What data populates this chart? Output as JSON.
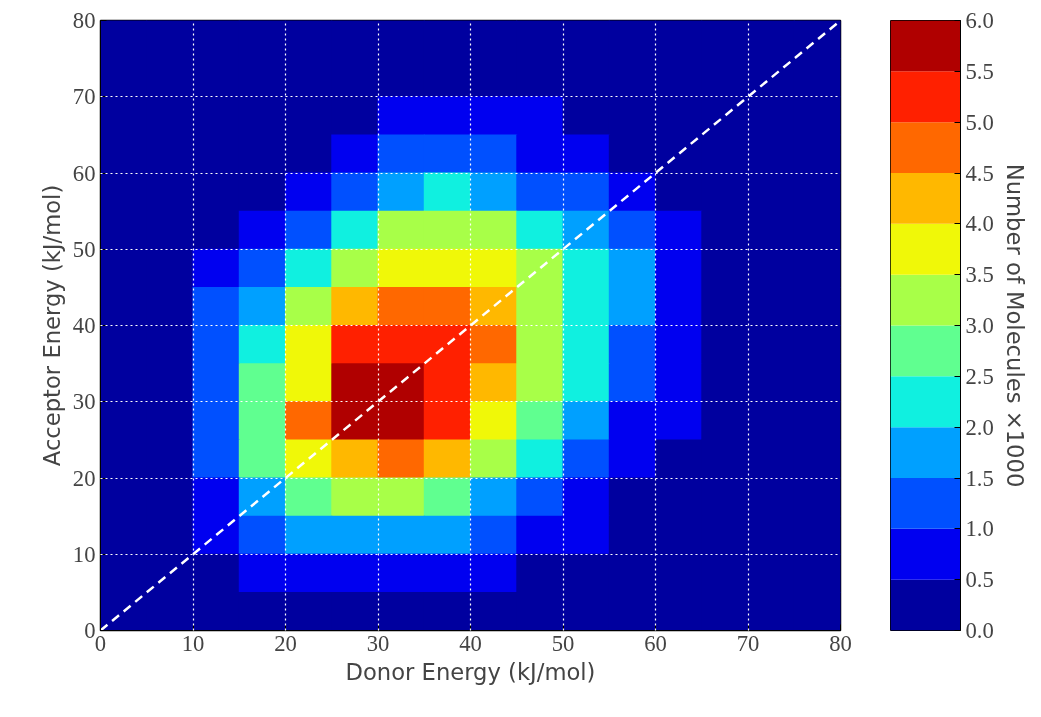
{
  "chart_data": {
    "type": "heatmap",
    "xlabel": "Donor Energy (kJ/mol)",
    "ylabel": "Acceptor Energy (kJ/mol)",
    "clabel": "Number of Molecules ×1000",
    "x": [
      2.5,
      7.5,
      12.5,
      17.5,
      22.5,
      27.5,
      32.5,
      37.5,
      42.5,
      47.5,
      52.5,
      57.5,
      62.5,
      67.5,
      72.5,
      77.5
    ],
    "y": [
      77.5,
      72.5,
      67.5,
      62.5,
      57.5,
      52.5,
      47.5,
      42.5,
      37.5,
      32.5,
      27.5,
      22.5,
      17.5,
      12.5,
      7.5,
      2.5
    ],
    "xlim": [
      0,
      80
    ],
    "ylim": [
      0,
      80
    ],
    "xticks": [
      0,
      10,
      20,
      30,
      40,
      50,
      60,
      70,
      80
    ],
    "yticks": [
      0,
      10,
      20,
      30,
      40,
      50,
      60,
      70,
      80
    ],
    "clim": [
      0,
      6
    ],
    "cticks": [
      {
        "value": 0,
        "label": "0.0"
      },
      {
        "value": 0.5,
        "label": "0.5"
      },
      {
        "value": 1,
        "label": "1.0"
      },
      {
        "value": 1.5,
        "label": "1.5"
      },
      {
        "value": 2,
        "label": "2.0"
      },
      {
        "value": 2.5,
        "label": "2.5"
      },
      {
        "value": 3,
        "label": "3.0"
      },
      {
        "value": 3.5,
        "label": "3.5"
      },
      {
        "value": 4,
        "label": "4.0"
      },
      {
        "value": 4.5,
        "label": "4.5"
      },
      {
        "value": 5,
        "label": "5.0"
      },
      {
        "value": 5.5,
        "label": "5.5"
      },
      {
        "value": 6,
        "label": "6.0"
      }
    ],
    "cells": [
      [
        0,
        0,
        0,
        0,
        0,
        0,
        0,
        0,
        0,
        0,
        0,
        0,
        0,
        0,
        0,
        0
      ],
      [
        0,
        0,
        0,
        0,
        0,
        0,
        0,
        0,
        0,
        0,
        0,
        0,
        0,
        0,
        0,
        0
      ],
      [
        0,
        0,
        0,
        0,
        0,
        0.2,
        0.6,
        0.6,
        0.6,
        0.6,
        0.2,
        0,
        0,
        0,
        0,
        0
      ],
      [
        0,
        0,
        0,
        0,
        0.3,
        0.7,
        1.1,
        1.2,
        1.1,
        0.8,
        0.6,
        0.2,
        0,
        0,
        0,
        0
      ],
      [
        0,
        0,
        0,
        0.4,
        0.8,
        1.3,
        1.8,
        2.0,
        1.8,
        1.4,
        1.1,
        0.6,
        0.2,
        0,
        0,
        0
      ],
      [
        0,
        0,
        0.3,
        0.8,
        1.4,
        2.2,
        3.0,
        3.2,
        3.0,
        2.4,
        1.7,
        1.0,
        0.6,
        0.1,
        0,
        0
      ],
      [
        0,
        0.1,
        0.7,
        1.4,
        2.2,
        3.1,
        3.8,
        3.9,
        3.7,
        3.0,
        2.1,
        1.5,
        0.8,
        0.2,
        0,
        0
      ],
      [
        0,
        0.3,
        1.0,
        1.8,
        3.1,
        4.1,
        4.5,
        4.6,
        4.4,
        3.2,
        2.2,
        1.5,
        0.9,
        0.2,
        0,
        0
      ],
      [
        0,
        0.4,
        1.1,
        2.4,
        3.7,
        5.1,
        5.4,
        5.3,
        4.5,
        3.1,
        2.0,
        1.3,
        0.8,
        0.3,
        0,
        0
      ],
      [
        0,
        0.4,
        1.3,
        2.7,
        3.8,
        5.6,
        5.9,
        5.4,
        4.3,
        3.1,
        2.1,
        1.4,
        0.8,
        0.1,
        0,
        0
      ],
      [
        0,
        0.4,
        1.4,
        2.9,
        4.6,
        5.6,
        5.7,
        5.2,
        3.9,
        2.6,
        1.6,
        0.9,
        0.5,
        0,
        0,
        0
      ],
      [
        0,
        0.4,
        1.3,
        2.6,
        3.9,
        4.4,
        4.6,
        4.1,
        3.1,
        2.0,
        1.1,
        0.6,
        0,
        0,
        0,
        0
      ],
      [
        0,
        0.2,
        0.9,
        1.8,
        2.6,
        3.0,
        3.0,
        2.6,
        1.8,
        1.2,
        0.7,
        0.4,
        0,
        0,
        0,
        0
      ],
      [
        0,
        0.1,
        0.6,
        1.1,
        1.6,
        1.9,
        1.9,
        1.6,
        1.1,
        0.8,
        0.6,
        0,
        0,
        0,
        0,
        0
      ],
      [
        0,
        0,
        0.3,
        0.6,
        0.8,
        0.9,
        0.9,
        0.8,
        0.6,
        0.4,
        0,
        0,
        0,
        0,
        0,
        0
      ],
      [
        0,
        0,
        0,
        0,
        0,
        0,
        0,
        0,
        0,
        0,
        0,
        0,
        0,
        0,
        0,
        0
      ]
    ],
    "series": [
      {
        "type": "line",
        "x": [
          0,
          80
        ],
        "values": [
          0,
          80
        ],
        "color": "#ffffff",
        "line_style": "dashed"
      }
    ],
    "grid": true
  }
}
